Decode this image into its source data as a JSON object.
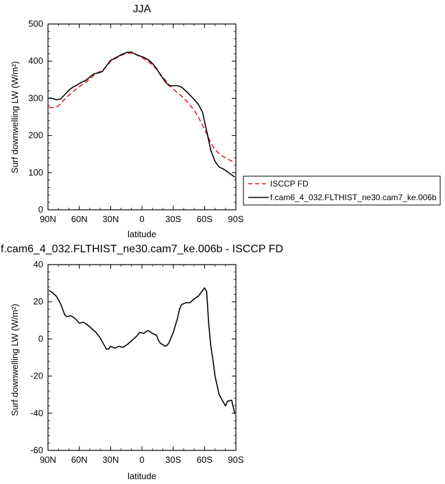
{
  "chart_data": [
    {
      "type": "line",
      "title": "JJA",
      "xlabel": "latitude",
      "ylabel": "Surf downwelling LW (W/m²)",
      "xlim": [
        90,
        -90
      ],
      "ylim": [
        0,
        500
      ],
      "xticks": [
        90,
        60,
        30,
        0,
        -30,
        -60,
        -90
      ],
      "xtick_labels": [
        "90N",
        "60N",
        "30N",
        "0",
        "30S",
        "60S",
        "90S"
      ],
      "yticks": [
        0,
        100,
        200,
        300,
        400,
        500
      ],
      "ytick_labels": [
        "0",
        "100",
        "200",
        "300",
        "400",
        "500"
      ],
      "legend_position": "right",
      "series": [
        {
          "name": "ISCCP FD",
          "color": "#e8191d",
          "dash": "dashed",
          "x": [
            89,
            86,
            82,
            78,
            74,
            70,
            66,
            62,
            58,
            54,
            50,
            46,
            42,
            38,
            34,
            30,
            26,
            22,
            18,
            14,
            10,
            6,
            2,
            -2,
            -6,
            -10,
            -14,
            -18,
            -22,
            -26,
            -30,
            -34,
            -38,
            -42,
            -46,
            -50,
            -54,
            -58,
            -62,
            -66,
            -70,
            -74,
            -78,
            -82,
            -86,
            -89
          ],
          "y": [
            275,
            275,
            276,
            285,
            298,
            308,
            318,
            327,
            335,
            343,
            352,
            362,
            370,
            374,
            386,
            400,
            406,
            412,
            418,
            421,
            422,
            419,
            412,
            406,
            400,
            390,
            378,
            364,
            350,
            336,
            325,
            315,
            306,
            295,
            282,
            268,
            250,
            228,
            205,
            180,
            162,
            151,
            143,
            137,
            131,
            128
          ]
        },
        {
          "name": "f.cam6_4_032.FLTHIST_ne30.cam7_ke.006b",
          "color": "#000000",
          "dash": "solid",
          "x": [
            89,
            86,
            82,
            78,
            74,
            70,
            66,
            62,
            58,
            54,
            50,
            46,
            42,
            38,
            34,
            30,
            26,
            22,
            18,
            14,
            10,
            6,
            2,
            -2,
            -6,
            -10,
            -14,
            -18,
            -22,
            -26,
            -30,
            -34,
            -38,
            -42,
            -46,
            -50,
            -54,
            -58,
            -62,
            -66,
            -70,
            -74,
            -78,
            -82,
            -86,
            -89
          ],
          "y": [
            301,
            300,
            296,
            298,
            310,
            322,
            330,
            336,
            343,
            348,
            357,
            366,
            368,
            372,
            387,
            402,
            408,
            414,
            420,
            424,
            424,
            418,
            414,
            410,
            404,
            394,
            380,
            362,
            346,
            334,
            334,
            334,
            330,
            320,
            309,
            297,
            284,
            263,
            212,
            160,
            130,
            115,
            110,
            102,
            94,
            88
          ]
        }
      ]
    },
    {
      "type": "line",
      "title": "f.cam6_4_032.FLTHIST_ne30.cam7_ke.006b - ISCCP FD",
      "xlabel": "latitude",
      "ylabel": "Surf downwelling LW (W/m²)",
      "xlim": [
        90,
        -90
      ],
      "ylim": [
        -60,
        40
      ],
      "xticks": [
        90,
        60,
        30,
        0,
        -30,
        -60,
        -90
      ],
      "xtick_labels": [
        "90N",
        "60N",
        "30N",
        "0",
        "30S",
        "60S",
        "90S"
      ],
      "yticks": [
        -60,
        -40,
        -20,
        0,
        20,
        40
      ],
      "ytick_labels": [
        "-60",
        "-40",
        "-20",
        "0",
        "20",
        "40"
      ],
      "series": [
        {
          "color": "#000000",
          "dash": "solid",
          "x": [
            89,
            86,
            82,
            78,
            76,
            74,
            72,
            68,
            64,
            60,
            56,
            52,
            48,
            44,
            40,
            38,
            36,
            34,
            32,
            30,
            26,
            22,
            18,
            14,
            10,
            6,
            2,
            -2,
            -4,
            -6,
            -10,
            -14,
            -16,
            -18,
            -20,
            -22,
            -24,
            -26,
            -30,
            -34,
            -36,
            -38,
            -42,
            -46,
            -50,
            -54,
            -58,
            -60,
            -62,
            -64,
            -66,
            -68,
            -70,
            -74,
            -78,
            -80,
            -82,
            -86,
            -88,
            -89
          ],
          "y": [
            26,
            25,
            23,
            19,
            16,
            13,
            12,
            12.5,
            11,
            8.5,
            9,
            7.5,
            5.5,
            3.5,
            0.5,
            -1.5,
            -3.5,
            -5.5,
            -5.5,
            -4,
            -5,
            -4,
            -4.5,
            -3,
            -1,
            1,
            3.5,
            3,
            4,
            4.5,
            3,
            2,
            -1,
            -2.5,
            -3,
            -4,
            -3.5,
            -2,
            3.5,
            11,
            16,
            18.5,
            19.5,
            19.5,
            21.5,
            23,
            26,
            27.5,
            25.5,
            8,
            -4,
            -11,
            -20,
            -30,
            -34,
            -36,
            -33.5,
            -33,
            -38,
            -40
          ]
        }
      ]
    }
  ]
}
